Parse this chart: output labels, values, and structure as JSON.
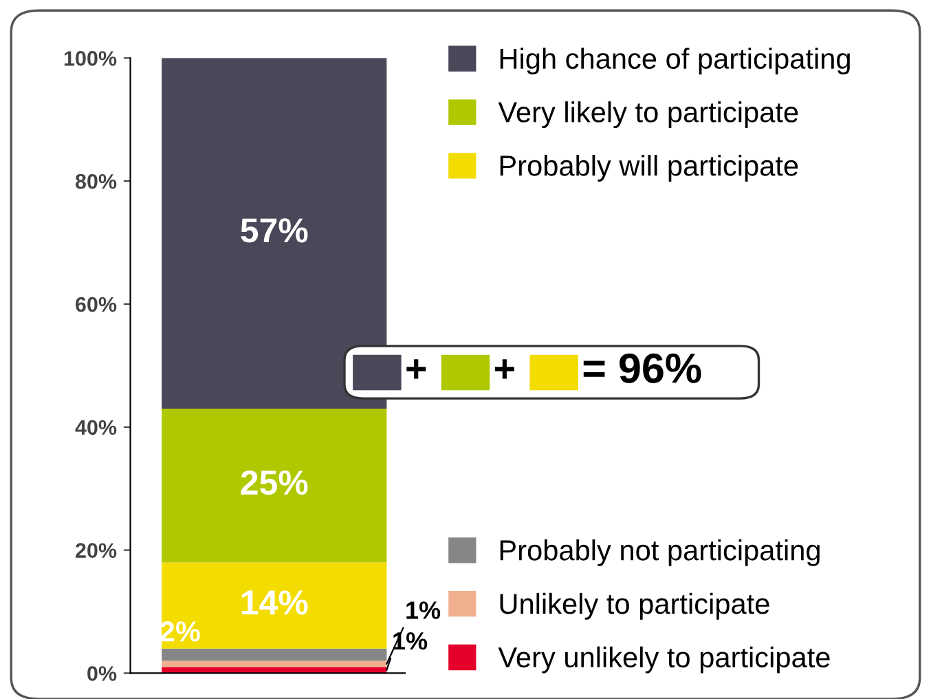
{
  "chart_data": {
    "type": "bar",
    "stacked": true,
    "categories": [
      null
    ],
    "series": [
      {
        "name": "Very unlikely to participate",
        "color": "#e4002b",
        "values": [
          1
        ],
        "value_labels": [
          "1%"
        ]
      },
      {
        "name": "Unlikely to participate",
        "color": "#f0b090",
        "values": [
          1
        ],
        "value_labels": [
          "1%"
        ]
      },
      {
        "name": "Probably not participating",
        "color": "#868686",
        "values": [
          2
        ],
        "value_labels": [
          "2%"
        ]
      },
      {
        "name": "Probably will participate",
        "color": "#f3dc00",
        "values": [
          14
        ],
        "value_labels": [
          "14%"
        ]
      },
      {
        "name": "Very likely to participate",
        "color": "#b0c800",
        "values": [
          25
        ],
        "value_labels": [
          "25%"
        ]
      },
      {
        "name": "High chance of participating",
        "color": "#4a4858",
        "values": [
          57
        ],
        "value_labels": [
          "57%"
        ]
      }
    ],
    "ylim": [
      0,
      100
    ],
    "yticks": [
      {
        "value": 0,
        "label": "0%"
      },
      {
        "value": 20,
        "label": "20%"
      },
      {
        "value": 40,
        "label": "40%"
      },
      {
        "value": 60,
        "label": "60%"
      },
      {
        "value": 80,
        "label": "80%"
      },
      {
        "value": 100,
        "label": "100%"
      }
    ],
    "tick_labels": "y",
    "grid": false,
    "legend": "right",
    "annotations": [
      "+",
      "+",
      "= 96%"
    ]
  }
}
